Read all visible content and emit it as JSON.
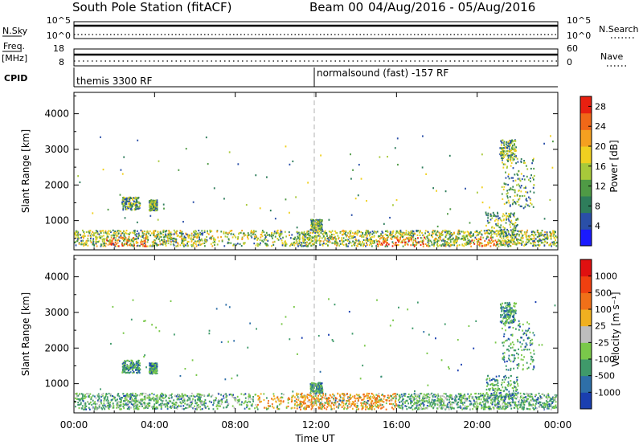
{
  "title": {
    "station": "South Pole Station (fitACF)",
    "beam": "Beam 00",
    "dates": "04/Aug/2016 - 05/Aug/2016"
  },
  "header_panels": {
    "nsky_label": "N.Sky",
    "nsky_ticks": [
      "10^5",
      "10^0"
    ],
    "nsearch_label": "N.Search",
    "nsearch_ticks": [
      "10^5",
      "10^0"
    ],
    "freq_label_1": "Freq.",
    "freq_label_2": "[MHz]",
    "freq_ticks": [
      "18",
      "8"
    ],
    "nave_label": "Nave",
    "nave_ticks": [
      "60",
      "0"
    ],
    "cpid_label": "CPID",
    "cpid_segments": [
      {
        "label": "themis 3300 RF",
        "start_hour": 0
      },
      {
        "label": "normalsound (fast) -157 RF",
        "start_hour": 12
      }
    ]
  },
  "chart_data": [
    {
      "type": "heatmap",
      "name": "power",
      "xlabel": "Time UT",
      "ylabel": "Slant Range [km]",
      "x_ticks": [
        "00:00",
        "04:00",
        "08:00",
        "12:00",
        "16:00",
        "20:00",
        "00:00"
      ],
      "xlim_hours": [
        0,
        24
      ],
      "y_ticks": [
        1000,
        2000,
        3000,
        4000
      ],
      "ylim": [
        180,
        4600
      ],
      "colorbar_label": "Power [dB]",
      "colorbar_ticks": [
        "4",
        "8",
        "12",
        "16",
        "20",
        "24",
        "28"
      ],
      "colorbar_range": [
        0,
        30
      ],
      "colorbar_colors": [
        "#1a1aff",
        "#2a4fa8",
        "#2e7d5b",
        "#4f9a45",
        "#a8c93a",
        "#f0d020",
        "#f5a020",
        "#f06818",
        "#e82010"
      ],
      "dashed_marker_hour": 12
    },
    {
      "type": "heatmap",
      "name": "velocity",
      "xlabel": "Time UT",
      "ylabel": "Slant Range [km]",
      "x_ticks": [
        "00:00",
        "04:00",
        "08:00",
        "12:00",
        "16:00",
        "20:00",
        "00:00"
      ],
      "xlim_hours": [
        0,
        24
      ],
      "y_ticks": [
        1000,
        2000,
        3000,
        4000
      ],
      "ylim": [
        180,
        4600
      ],
      "colorbar_label": "Velocity [m s⁻¹]",
      "colorbar_ticks": [
        "1000",
        "500",
        "100",
        "25",
        "-25",
        "-100",
        "-500",
        "-1000"
      ],
      "colorbar_colors": [
        "#1a3fb0",
        "#2e6fa8",
        "#3f9a6a",
        "#7ac84a",
        "#bdbdbd",
        "#f0b020",
        "#f07018",
        "#f04010",
        "#e01010"
      ],
      "dashed_marker_hour": 12
    }
  ]
}
